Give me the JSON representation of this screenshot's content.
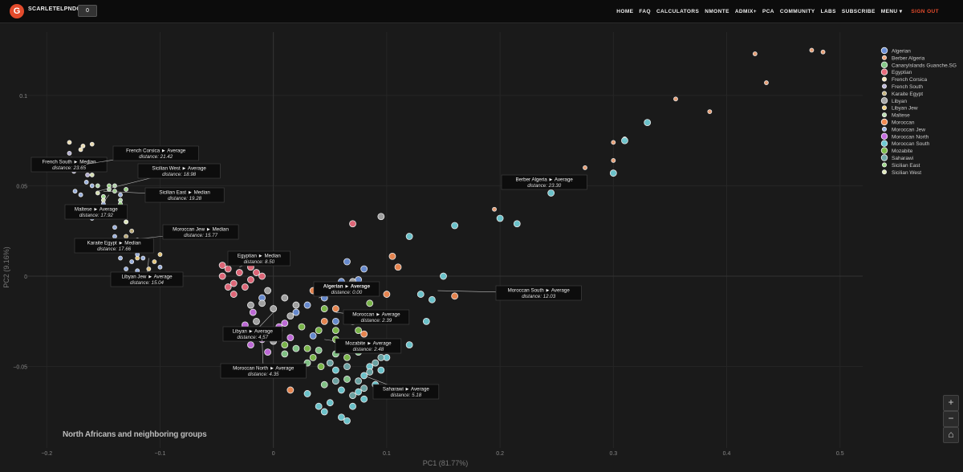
{
  "header": {
    "brand": "SCARLETELPNDO",
    "badge": "0",
    "nav": [
      "HOME",
      "FAQ",
      "CALCULATORS",
      "NMONTE",
      "ADMIX+",
      "PCA",
      "COMMUNITY",
      "LABS",
      "SUBSCRIBE",
      "MENU ▾"
    ],
    "signout": "SIGN OUT"
  },
  "tools": {
    "zoom_in": "+",
    "zoom_out": "−",
    "reset": "⌂"
  },
  "chart_data": {
    "type": "scatter",
    "title": "North Africans and neighboring groups",
    "xlabel": "PC1 (81.77%)",
    "ylabel": "PC2 (9.16%)",
    "xlim": [
      -0.22,
      0.52
    ],
    "ylim": [
      -0.095,
      0.135
    ],
    "xticks": [
      -0.2,
      -0.1,
      0,
      0.1,
      0.2,
      0.3,
      0.4,
      0.5
    ],
    "xtick_labels": [
      "−0.2",
      "−0.1",
      "0",
      "0.1",
      "0.2",
      "0.3",
      "0.4",
      "0.5"
    ],
    "yticks": [
      -0.05,
      0,
      0.05,
      0.1
    ],
    "ytick_labels": [
      "−0.05",
      "0",
      "0.05",
      "0.1"
    ],
    "grid": true,
    "legend_position": "top-right",
    "series": [
      {
        "name": "Algerian",
        "color": "#6b8fd6",
        "size": "large",
        "points": [
          [
            0.06,
            -0.003
          ],
          [
            0.08,
            0.004
          ],
          [
            0.065,
            0.008
          ],
          [
            0.03,
            -0.016
          ],
          [
            0.045,
            -0.012
          ],
          [
            0.02,
            -0.02
          ],
          [
            0.055,
            -0.025
          ],
          [
            0.035,
            -0.033
          ],
          [
            -0.01,
            -0.012
          ],
          [
            0.075,
            -0.002
          ]
        ]
      },
      {
        "name": "Berber Algeria",
        "color": "#f2a679",
        "size": "small",
        "points": [
          [
            0.254,
            0.051
          ],
          [
            0.275,
            0.06
          ],
          [
            0.3,
            0.064
          ],
          [
            0.3,
            0.074
          ],
          [
            0.31,
            0.076
          ],
          [
            0.355,
            0.098
          ],
          [
            0.385,
            0.091
          ],
          [
            0.425,
            0.123
          ],
          [
            0.435,
            0.107
          ],
          [
            0.475,
            0.125
          ],
          [
            0.485,
            0.124
          ],
          [
            0.195,
            0.037
          ]
        ]
      },
      {
        "name": "CanaryIslands Guanche.SG",
        "color": "#86c98a",
        "size": "large",
        "points": [
          [
            0.04,
            -0.041
          ],
          [
            0.055,
            -0.043
          ],
          [
            0.075,
            -0.042
          ],
          [
            0.065,
            -0.057
          ],
          [
            0.045,
            -0.06
          ],
          [
            0.03,
            -0.048
          ],
          [
            0.02,
            -0.04
          ],
          [
            0.01,
            -0.043
          ]
        ]
      },
      {
        "name": "Egyptian",
        "color": "#e86b7c",
        "size": "large",
        "points": [
          [
            -0.04,
            0.004
          ],
          [
            -0.03,
            0.002
          ],
          [
            -0.02,
            0.005
          ],
          [
            -0.045,
            0.0
          ],
          [
            -0.035,
            -0.004
          ],
          [
            -0.025,
            -0.006
          ],
          [
            -0.015,
            0.002
          ],
          [
            -0.04,
            -0.006
          ],
          [
            -0.03,
            0.008
          ],
          [
            -0.02,
            -0.002
          ],
          [
            -0.01,
            0.0
          ],
          [
            -0.045,
            0.006
          ],
          [
            -0.025,
            0.011
          ],
          [
            0.07,
            0.029
          ],
          [
            -0.035,
            -0.01
          ]
        ]
      },
      {
        "name": "French Corsica",
        "color": "#f6e6b8",
        "size": "small",
        "points": [
          [
            -0.16,
            0.073
          ],
          [
            -0.17,
            0.07
          ],
          [
            -0.18,
            0.074
          ],
          [
            -0.175,
            0.064
          ],
          [
            -0.165,
            0.06
          ],
          [
            -0.155,
            0.062
          ],
          [
            -0.168,
            0.072
          ]
        ]
      },
      {
        "name": "French South",
        "color": "#b9b4d9",
        "size": "small",
        "points": [
          [
            -0.18,
            0.068
          ],
          [
            -0.17,
            0.064
          ],
          [
            -0.176,
            0.058
          ],
          [
            -0.164,
            0.056
          ],
          [
            -0.17,
            0.06
          ]
        ]
      },
      {
        "name": "Karaite Egypt",
        "color": "#c4b27d",
        "size": "small",
        "points": [
          [
            -0.13,
            0.022
          ],
          [
            -0.12,
            0.02
          ],
          [
            -0.125,
            0.025
          ],
          [
            -0.115,
            0.018
          ]
        ]
      },
      {
        "name": "Libyan",
        "color": "#a7a7a7",
        "size": "large",
        "points": [
          [
            -0.01,
            -0.015
          ],
          [
            0.0,
            -0.018
          ],
          [
            0.01,
            -0.012
          ],
          [
            -0.015,
            -0.025
          ],
          [
            0.005,
            -0.03
          ],
          [
            0.015,
            -0.022
          ],
          [
            -0.005,
            -0.008
          ],
          [
            0.02,
            -0.016
          ],
          [
            -0.02,
            -0.016
          ],
          [
            0.0,
            -0.036
          ],
          [
            0.095,
            0.033
          ],
          [
            0.07,
            -0.003
          ]
        ]
      },
      {
        "name": "Libyan Jew",
        "color": "#f0d07c",
        "size": "small",
        "points": [
          [
            -0.11,
            0.004
          ],
          [
            -0.105,
            0.008
          ],
          [
            -0.1,
            0.012
          ],
          [
            -0.12,
            0.01
          ],
          [
            -0.112,
            0.016
          ]
        ]
      },
      {
        "name": "Maltese",
        "color": "#b9dfb0",
        "size": "small",
        "points": [
          [
            -0.155,
            0.05
          ],
          [
            -0.145,
            0.048
          ],
          [
            -0.15,
            0.044
          ],
          [
            -0.14,
            0.05
          ],
          [
            -0.135,
            0.042
          ]
        ]
      },
      {
        "name": "Moroccan",
        "color": "#f08a52",
        "size": "large",
        "points": [
          [
            0.07,
            -0.025
          ],
          [
            0.08,
            -0.032
          ],
          [
            0.1,
            -0.01
          ],
          [
            0.11,
            0.005
          ],
          [
            0.105,
            0.011
          ],
          [
            0.16,
            -0.011
          ],
          [
            0.035,
            -0.008
          ],
          [
            0.015,
            -0.063
          ],
          [
            0.045,
            -0.025
          ],
          [
            0.055,
            -0.018
          ]
        ]
      },
      {
        "name": "Moroccan Jew",
        "color": "#9fb8e8",
        "size": "small",
        "points": [
          [
            -0.13,
            0.015
          ],
          [
            -0.12,
            0.012
          ],
          [
            -0.125,
            0.008
          ],
          [
            -0.115,
            0.01
          ],
          [
            -0.135,
            0.01
          ],
          [
            -0.13,
            0.004
          ],
          [
            -0.14,
            0.022
          ],
          [
            -0.14,
            0.027
          ],
          [
            -0.145,
            0.036
          ],
          [
            -0.15,
            0.04
          ],
          [
            -0.16,
            0.05
          ],
          [
            -0.17,
            0.045
          ],
          [
            -0.165,
            0.052
          ],
          [
            -0.175,
            0.047
          ],
          [
            -0.16,
            0.032
          ],
          [
            -0.13,
            0.03
          ],
          [
            -0.135,
            0.045
          ],
          [
            -0.14,
            0.015
          ],
          [
            -0.12,
            0.003
          ],
          [
            -0.1,
            0.0
          ],
          [
            -0.1,
            0.005
          ],
          [
            -0.11,
            0.015
          ],
          [
            -0.13,
            0.019
          ]
        ]
      },
      {
        "name": "Moroccan North",
        "color": "#c66ee0",
        "size": "large",
        "points": [
          [
            -0.02,
            -0.038
          ],
          [
            -0.01,
            -0.035
          ],
          [
            0.0,
            -0.032
          ],
          [
            -0.015,
            -0.03
          ],
          [
            0.005,
            -0.028
          ],
          [
            -0.025,
            -0.027
          ],
          [
            0.01,
            -0.026
          ],
          [
            -0.005,
            -0.042
          ],
          [
            0.015,
            -0.034
          ],
          [
            -0.018,
            -0.02
          ]
        ]
      },
      {
        "name": "Moroccan South",
        "color": "#6fcad3",
        "size": "large",
        "points": [
          [
            0.08,
            -0.055
          ],
          [
            0.06,
            -0.063
          ],
          [
            0.05,
            -0.07
          ],
          [
            0.09,
            -0.06
          ],
          [
            0.07,
            -0.072
          ],
          [
            0.06,
            -0.078
          ],
          [
            0.045,
            -0.075
          ],
          [
            0.085,
            -0.05
          ],
          [
            0.1,
            -0.045
          ],
          [
            0.075,
            -0.064
          ],
          [
            0.04,
            -0.072
          ],
          [
            0.055,
            -0.052
          ],
          [
            0.095,
            -0.052
          ],
          [
            0.065,
            -0.08
          ],
          [
            0.08,
            -0.068
          ],
          [
            0.14,
            -0.013
          ],
          [
            0.15,
            0.0
          ],
          [
            0.13,
            -0.01
          ],
          [
            0.2,
            0.032
          ],
          [
            0.215,
            0.029
          ],
          [
            0.245,
            0.046
          ],
          [
            0.3,
            0.057
          ],
          [
            0.31,
            0.075
          ],
          [
            0.33,
            0.085
          ],
          [
            0.16,
            0.028
          ],
          [
            0.12,
            0.022
          ],
          [
            0.135,
            -0.025
          ],
          [
            0.12,
            -0.038
          ],
          [
            0.03,
            -0.065
          ]
        ]
      },
      {
        "name": "Mozabite",
        "color": "#7fbd4c",
        "size": "large",
        "points": [
          [
            0.04,
            -0.03
          ],
          [
            0.055,
            -0.035
          ],
          [
            0.07,
            -0.038
          ],
          [
            0.045,
            -0.018
          ],
          [
            0.075,
            -0.03
          ],
          [
            0.03,
            -0.04
          ],
          [
            0.01,
            -0.038
          ],
          [
            0.085,
            -0.015
          ],
          [
            0.065,
            -0.045
          ],
          [
            0.025,
            -0.028
          ],
          [
            0.042,
            -0.05
          ],
          [
            0.055,
            -0.03
          ],
          [
            0.035,
            -0.045
          ]
        ]
      },
      {
        "name": "Saharawi",
        "color": "#6fa8a8",
        "size": "large",
        "points": [
          [
            0.065,
            -0.05
          ],
          [
            0.075,
            -0.058
          ],
          [
            0.085,
            -0.053
          ],
          [
            0.05,
            -0.048
          ],
          [
            0.07,
            -0.066
          ],
          [
            0.09,
            -0.048
          ],
          [
            0.055,
            -0.058
          ],
          [
            0.08,
            -0.062
          ],
          [
            0.095,
            -0.045
          ]
        ]
      },
      {
        "name": "Sicilian East",
        "color": "#9fd98a",
        "size": "small",
        "points": [
          [
            -0.14,
            0.047
          ],
          [
            -0.145,
            0.05
          ],
          [
            -0.13,
            0.048
          ],
          [
            -0.15,
            0.044
          ],
          [
            -0.135,
            0.04
          ]
        ]
      },
      {
        "name": "Sicilian West",
        "color": "#dfe8b8",
        "size": "small",
        "points": [
          [
            -0.145,
            0.036
          ],
          [
            -0.15,
            0.042
          ],
          [
            -0.155,
            0.046
          ],
          [
            -0.16,
            0.056
          ],
          [
            -0.165,
            0.06
          ],
          [
            -0.13,
            0.03
          ]
        ]
      }
    ],
    "annotations": [
      {
        "label": "French South ► Median",
        "distance": "distance: 23.65",
        "x": -0.178,
        "y": 0.066
      },
      {
        "label": "French Corsica ► Average",
        "distance": "distance: 21.42",
        "x": -0.165,
        "y": 0.062
      },
      {
        "label": "Sicilian West ► Average",
        "distance": "distance: 18.98",
        "x": -0.155,
        "y": 0.047
      },
      {
        "label": "Sicilian East ► Median",
        "distance": "distance: 19.28",
        "x": -0.15,
        "y": 0.047
      },
      {
        "label": "Maltese ► Average",
        "distance": "distance: 17.92",
        "x": -0.145,
        "y": 0.045
      },
      {
        "label": "Moroccan Jew ► Median",
        "distance": "distance: 15.77",
        "x": -0.128,
        "y": 0.02
      },
      {
        "label": "Karaite Egypt ► Median",
        "distance": "distance: 17.66",
        "x": -0.125,
        "y": 0.02
      },
      {
        "label": "Libyan Jew ► Average",
        "distance": "distance: 15.04",
        "x": -0.11,
        "y": 0.01
      },
      {
        "label": "Egyptian ► Median",
        "distance": "distance: 8.50",
        "x": -0.03,
        "y": 0.005
      },
      {
        "label": "Algerian ► Average",
        "distance": "distance: 0.00",
        "x": 0.04,
        "y": -0.012,
        "bold": true
      },
      {
        "label": "Moroccan ► Average",
        "distance": "distance: 2.39",
        "x": 0.055,
        "y": -0.02
      },
      {
        "label": "Libyan ► Average",
        "distance": "distance: 4.57",
        "x": 0.0,
        "y": -0.02
      },
      {
        "label": "Mozabite ► Average",
        "distance": "distance: 2.48",
        "x": 0.045,
        "y": -0.035
      },
      {
        "label": "Moroccan North ► Average",
        "distance": "distance: 4.35",
        "x": -0.01,
        "y": -0.035
      },
      {
        "label": "Saharawi ► Average",
        "distance": "distance: 5.18",
        "x": 0.08,
        "y": -0.055
      },
      {
        "label": "Moroccan South ► Average",
        "distance": "distance: 12.03",
        "x": 0.145,
        "y": -0.008
      },
      {
        "label": "Berber Algeria ► Average",
        "distance": "distance: 23.30",
        "x": 0.255,
        "y": 0.05
      }
    ]
  }
}
